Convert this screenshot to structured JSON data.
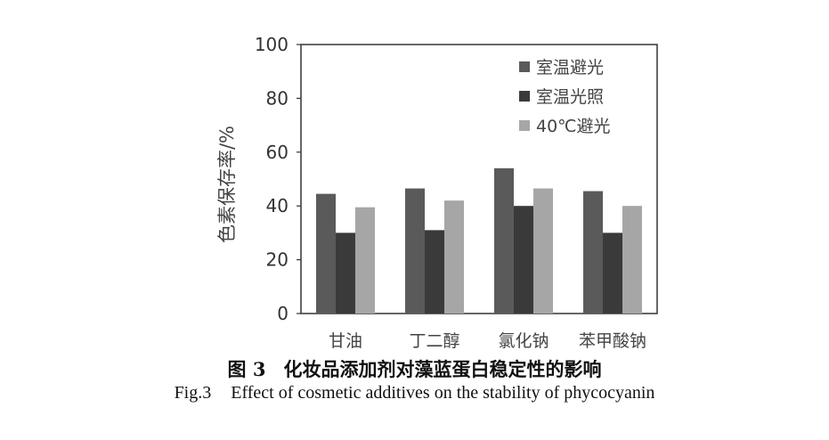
{
  "chart_data": {
    "type": "bar",
    "categories": [
      "甘油",
      "丁二醇",
      "氯化钠",
      "苯甲酸钠"
    ],
    "series": [
      {
        "name": "室温避光",
        "values": [
          44.5,
          46.5,
          54,
          45.5
        ],
        "color": "#5a5a5a"
      },
      {
        "name": "室温光照",
        "values": [
          30,
          31,
          40,
          30
        ],
        "color": "#3a3a3a"
      },
      {
        "name": "40℃避光",
        "values": [
          39.5,
          42,
          46.5,
          40
        ],
        "color": "#a6a6a6"
      }
    ],
    "ylabel": "色素保存率/%",
    "xlabel": "",
    "ylim": [
      0,
      100
    ],
    "yticks": [
      0,
      20,
      40,
      60,
      80,
      100
    ],
    "grid": false,
    "legend_position": "top-right"
  },
  "caption": {
    "cn_num": "图 3",
    "cn_text": "化妆品添加剂对藻蓝蛋白稳定性的影响",
    "en_num": "Fig.3",
    "en_text": "Effect of cosmetic additives on the stability of phycocyanin"
  }
}
